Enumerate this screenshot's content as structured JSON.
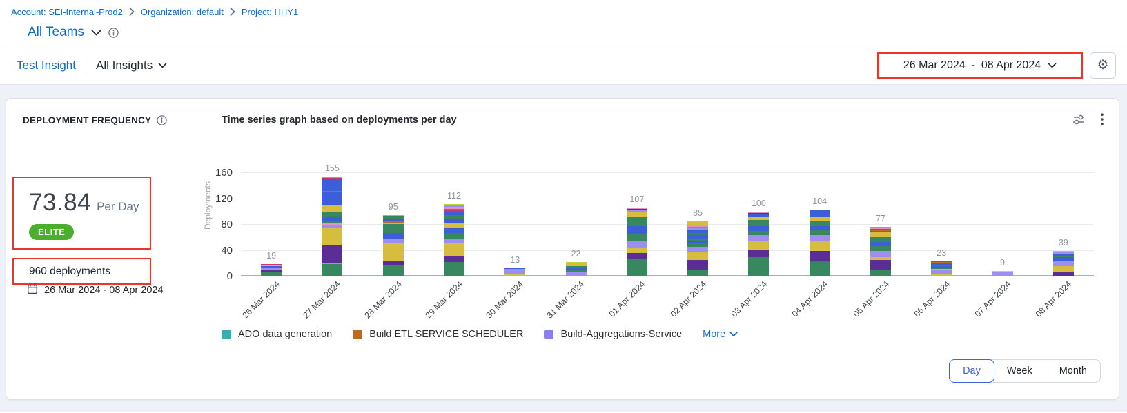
{
  "breadcrumb": {
    "items": [
      "Account: SEI-Internal-Prod2",
      "Organization: default",
      "Project: HHY1"
    ]
  },
  "team_selector": {
    "label": "All Teams"
  },
  "toolbar": {
    "insight_name": "Test Insight",
    "insights_dropdown": "All Insights",
    "date_range": "26 Mar 2024  -  08 Apr 2024"
  },
  "widget": {
    "title": "DEPLOYMENT FREQUENCY",
    "metric_value": "73.84",
    "metric_unit": "Per Day",
    "performance_badge": "ELITE",
    "total_deployments": "960 deployments",
    "date_range": "26 Mar 2024 - 08 Apr 2024"
  },
  "colors": {
    "accent_blue": "#0b6cce",
    "annotation_red": "#ee3426",
    "badge_green": "#4cae2e"
  },
  "chart_data": {
    "type": "bar",
    "stacked": true,
    "title": "Time series graph based on deployments per day",
    "xlabel": "",
    "ylabel": "Deployments",
    "ylim": [
      0,
      160
    ],
    "yticks": [
      0,
      40,
      80,
      120,
      160
    ],
    "grid": true,
    "legend_position": "bottom",
    "categories": [
      "26 Mar 2024",
      "27 Mar 2024",
      "28 Mar 2024",
      "29 Mar 2024",
      "30 Mar 2024",
      "31 Mar 2024",
      "01 Apr 2024",
      "02 Apr 2024",
      "03 Apr 2024",
      "04 Apr 2024",
      "05 Apr 2024",
      "06 Apr 2024",
      "07 Apr 2024",
      "08 Apr 2024"
    ],
    "values": [
      19,
      155,
      95,
      112,
      13,
      22,
      107,
      85,
      100,
      104,
      77,
      23,
      9,
      39
    ],
    "total": 960,
    "legend": [
      {
        "label": "ADO data generation",
        "color": "#3aaeae"
      },
      {
        "label": "Build ETL SERVICE SCHEDULER",
        "color": "#b96a25"
      },
      {
        "label": "Build-Aggregations-Service",
        "color": "#8b7ff0"
      }
    ],
    "more_label": "More",
    "palette": {
      "green": "#37875f",
      "purple": "#5b2e96",
      "gold": "#d6bc3f",
      "lavender": "#9d8ff1",
      "blue": "#3c5ed8",
      "teal": "#3aaeae",
      "orange": "#b96a25",
      "crimson": "#c03a70",
      "pink": "#dd93c4",
      "yellowgreen": "#bcd53c",
      "cyan": "#8fd8e6"
    },
    "bars": [
      {
        "label": "26 Mar 2024",
        "total": 19,
        "segments": [
          [
            "green",
            7
          ],
          [
            "purple",
            3
          ],
          [
            "lavender",
            4
          ],
          [
            "blue",
            2
          ],
          [
            "gold",
            1
          ],
          [
            "crimson",
            2
          ]
        ]
      },
      {
        "label": "27 Mar 2024",
        "total": 155,
        "segments": [
          [
            "green",
            19
          ],
          [
            "lavender",
            2
          ],
          [
            "purple",
            28
          ],
          [
            "gold",
            26
          ],
          [
            "lavender",
            5
          ],
          [
            "pink",
            2
          ],
          [
            "green",
            3
          ],
          [
            "blue",
            7
          ],
          [
            "green",
            8
          ],
          [
            "gold",
            10
          ],
          [
            "blue",
            20
          ],
          [
            "orange",
            2
          ],
          [
            "blue",
            19
          ],
          [
            "crimson",
            2
          ],
          [
            "lavender",
            2
          ]
        ]
      },
      {
        "label": "28 Mar 2024",
        "total": 95,
        "segments": [
          [
            "green",
            18
          ],
          [
            "purple",
            6
          ],
          [
            "gold",
            27
          ],
          [
            "lavender",
            8
          ],
          [
            "blue",
            8
          ],
          [
            "green",
            14
          ],
          [
            "gold",
            2
          ],
          [
            "orange",
            2
          ],
          [
            "blue",
            5
          ],
          [
            "green",
            3
          ],
          [
            "crimson",
            1
          ],
          [
            "pink",
            1
          ]
        ]
      },
      {
        "label": "29 Mar 2024",
        "total": 112,
        "segments": [
          [
            "green",
            22
          ],
          [
            "purple",
            9
          ],
          [
            "gold",
            20
          ],
          [
            "lavender",
            8
          ],
          [
            "green",
            8
          ],
          [
            "blue",
            8
          ],
          [
            "gold",
            8
          ],
          [
            "blue",
            7
          ],
          [
            "green",
            5
          ],
          [
            "blue",
            5
          ],
          [
            "crimson",
            3
          ],
          [
            "orange",
            2
          ],
          [
            "pink",
            3
          ],
          [
            "lavender",
            2
          ],
          [
            "yellowgreen",
            2
          ]
        ]
      },
      {
        "label": "30 Mar 2024",
        "total": 13,
        "segments": [
          [
            "green",
            1
          ],
          [
            "gold",
            2
          ],
          [
            "lavender",
            9
          ],
          [
            "blue",
            1
          ]
        ]
      },
      {
        "label": "31 Mar 2024",
        "total": 22,
        "segments": [
          [
            "lavender",
            8
          ],
          [
            "green",
            3
          ],
          [
            "blue",
            3
          ],
          [
            "green",
            2
          ],
          [
            "gold",
            5
          ],
          [
            "yellowgreen",
            1
          ]
        ]
      },
      {
        "label": "01 Apr 2024",
        "total": 107,
        "segments": [
          [
            "green",
            28
          ],
          [
            "purple",
            8
          ],
          [
            "gold",
            9
          ],
          [
            "lavender",
            9
          ],
          [
            "green",
            12
          ],
          [
            "blue",
            12
          ],
          [
            "green",
            14
          ],
          [
            "gold",
            8
          ],
          [
            "lavender",
            3
          ],
          [
            "purple",
            2
          ],
          [
            "pink",
            1
          ],
          [
            "cyan",
            1
          ]
        ]
      },
      {
        "label": "02 Apr 2024",
        "total": 85,
        "segments": [
          [
            "green",
            10
          ],
          [
            "purple",
            16
          ],
          [
            "gold",
            12
          ],
          [
            "lavender",
            8
          ],
          [
            "green",
            5
          ],
          [
            "blue",
            4
          ],
          [
            "green",
            4
          ],
          [
            "blue",
            5
          ],
          [
            "green",
            3
          ],
          [
            "blue",
            4
          ],
          [
            "lavender",
            4
          ],
          [
            "teal",
            2
          ],
          [
            "pink",
            2
          ],
          [
            "gold",
            6
          ]
        ]
      },
      {
        "label": "03 Apr 2024",
        "total": 100,
        "segments": [
          [
            "green",
            30
          ],
          [
            "purple",
            12
          ],
          [
            "gold",
            14
          ],
          [
            "lavender",
            8
          ],
          [
            "green",
            6
          ],
          [
            "blue",
            8
          ],
          [
            "green",
            10
          ],
          [
            "gold",
            4
          ],
          [
            "blue",
            4
          ],
          [
            "purple",
            2
          ],
          [
            "pink",
            2
          ]
        ]
      },
      {
        "label": "04 Apr 2024",
        "total": 104,
        "segments": [
          [
            "green",
            22
          ],
          [
            "blue",
            2
          ],
          [
            "purple",
            16
          ],
          [
            "gold",
            16
          ],
          [
            "lavender",
            8
          ],
          [
            "green",
            8
          ],
          [
            "blue",
            6
          ],
          [
            "green",
            8
          ],
          [
            "gold",
            6
          ],
          [
            "blue",
            10
          ],
          [
            "green",
            1
          ],
          [
            "yellowgreen",
            1
          ]
        ]
      },
      {
        "label": "05 Apr 2024",
        "total": 77,
        "segments": [
          [
            "green",
            10
          ],
          [
            "purple",
            16
          ],
          [
            "gold",
            4
          ],
          [
            "lavender",
            9
          ],
          [
            "green",
            8
          ],
          [
            "blue",
            6
          ],
          [
            "green",
            8
          ],
          [
            "gold",
            7
          ],
          [
            "green",
            2
          ],
          [
            "orange",
            2
          ],
          [
            "crimson",
            2
          ],
          [
            "pink",
            2
          ],
          [
            "lavender",
            1
          ]
        ]
      },
      {
        "label": "06 Apr 2024",
        "total": 23,
        "segments": [
          [
            "green",
            1
          ],
          [
            "gold",
            2
          ],
          [
            "lavender",
            7
          ],
          [
            "gold",
            2
          ],
          [
            "green",
            2
          ],
          [
            "blue",
            2
          ],
          [
            "green",
            2
          ],
          [
            "blue",
            2
          ],
          [
            "orange",
            2
          ],
          [
            "crimson",
            1
          ]
        ]
      },
      {
        "label": "07 Apr 2024",
        "total": 9,
        "segments": [
          [
            "lavender",
            8
          ],
          [
            "cyan",
            1
          ]
        ]
      },
      {
        "label": "08 Apr 2024",
        "total": 39,
        "segments": [
          [
            "purple",
            8
          ],
          [
            "gold",
            8
          ],
          [
            "lavender",
            8
          ],
          [
            "blue",
            6
          ],
          [
            "green",
            2
          ],
          [
            "blue",
            3
          ],
          [
            "lavender",
            2
          ],
          [
            "yellowgreen",
            2
          ]
        ]
      }
    ]
  },
  "granularity": {
    "options": [
      "Day",
      "Week",
      "Month"
    ],
    "selected": "Day"
  }
}
